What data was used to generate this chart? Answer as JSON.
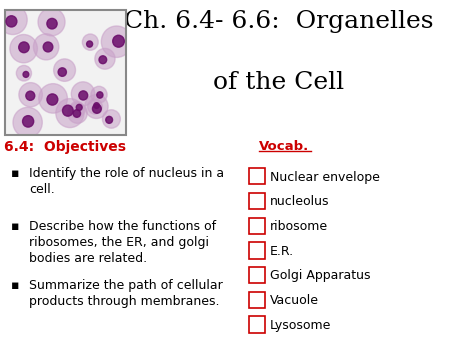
{
  "title_line1": "Ch. 6.4- 6.6:  Organelles",
  "title_line2": "of the Cell",
  "title_fontsize": 18,
  "title_color": "#000000",
  "objectives_header": "6.4:  Objectives",
  "objectives_header_color": "#CC0000",
  "objectives_header_fontsize": 10,
  "objectives_items": [
    "Identify the role of nucleus in a\ncell.",
    "Describe how the functions of\nribosomes, the ER, and golgi\nbodies are related.",
    "Summarize the path of cellular\nproducts through membranes."
  ],
  "objectives_fontsize": 9,
  "objectives_color": "#000000",
  "vocab_header": "Vocab.",
  "vocab_header_color": "#CC0000",
  "vocab_items": [
    "Nuclear envelope",
    "nucleolus",
    "ribosome",
    "E.R.",
    "Golgi Apparatus",
    "Vacuole",
    "Lysosome"
  ],
  "vocab_fontsize": 9,
  "vocab_color": "#000000",
  "checkbox_color": "#CC0000",
  "background_color": "#FFFFFF",
  "bullet_color": "#000000"
}
